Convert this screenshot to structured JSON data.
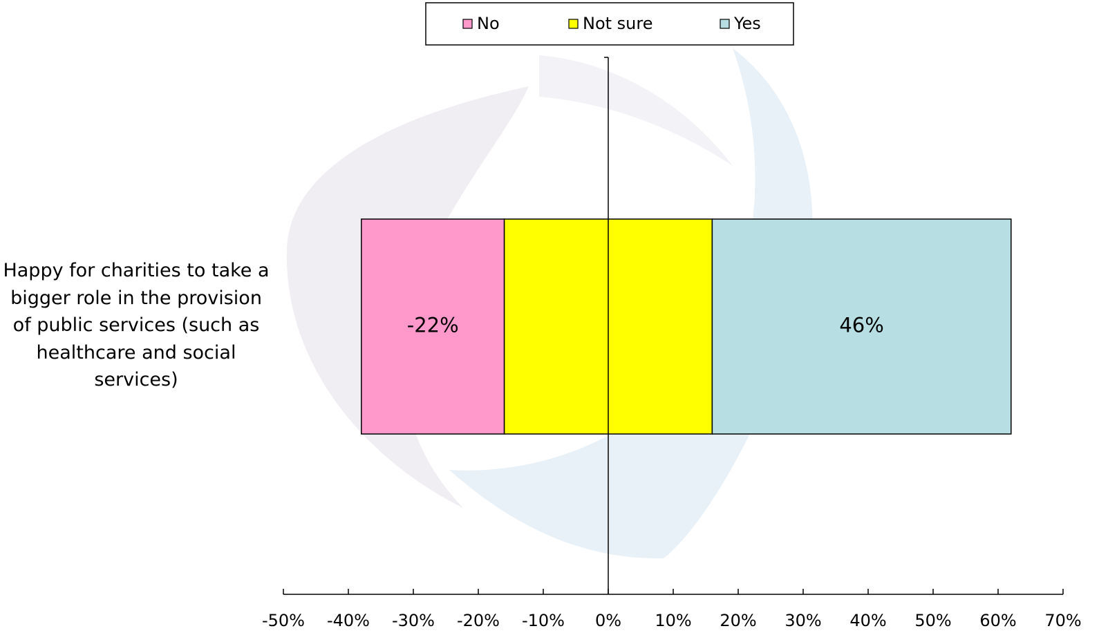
{
  "chart_data": {
    "type": "diverging_bar",
    "orientation": "horizontal",
    "categories": [
      "Happy for charities to take a bigger role in the provision of public services (such as healthcare and social services)"
    ],
    "series": [
      {
        "name": "No",
        "color": "#ff99cc",
        "values": [
          -22
        ],
        "value_labels": [
          "-22%"
        ]
      },
      {
        "name": "Not sure",
        "color": "#ffff00",
        "values": [
          32
        ]
      },
      {
        "name": "Yes",
        "color": "#b7dfe3",
        "values": [
          46
        ],
        "value_labels": [
          "46%"
        ]
      }
    ],
    "xlim": [
      -50,
      70
    ],
    "xticks": [
      {
        "value": -50,
        "label": "-50%"
      },
      {
        "value": -40,
        "label": "-40%"
      },
      {
        "value": -30,
        "label": "-30%"
      },
      {
        "value": -20,
        "label": "-20%"
      },
      {
        "value": -10,
        "label": "-10%"
      },
      {
        "value": 0,
        "label": "0%"
      },
      {
        "value": 10,
        "label": "10%"
      },
      {
        "value": 20,
        "label": "20%"
      },
      {
        "value": 30,
        "label": "30%"
      },
      {
        "value": 40,
        "label": "40%"
      },
      {
        "value": 50,
        "label": "50%"
      },
      {
        "value": 60,
        "label": "60%"
      },
      {
        "value": 70,
        "label": "70%"
      }
    ],
    "legend": "top"
  }
}
